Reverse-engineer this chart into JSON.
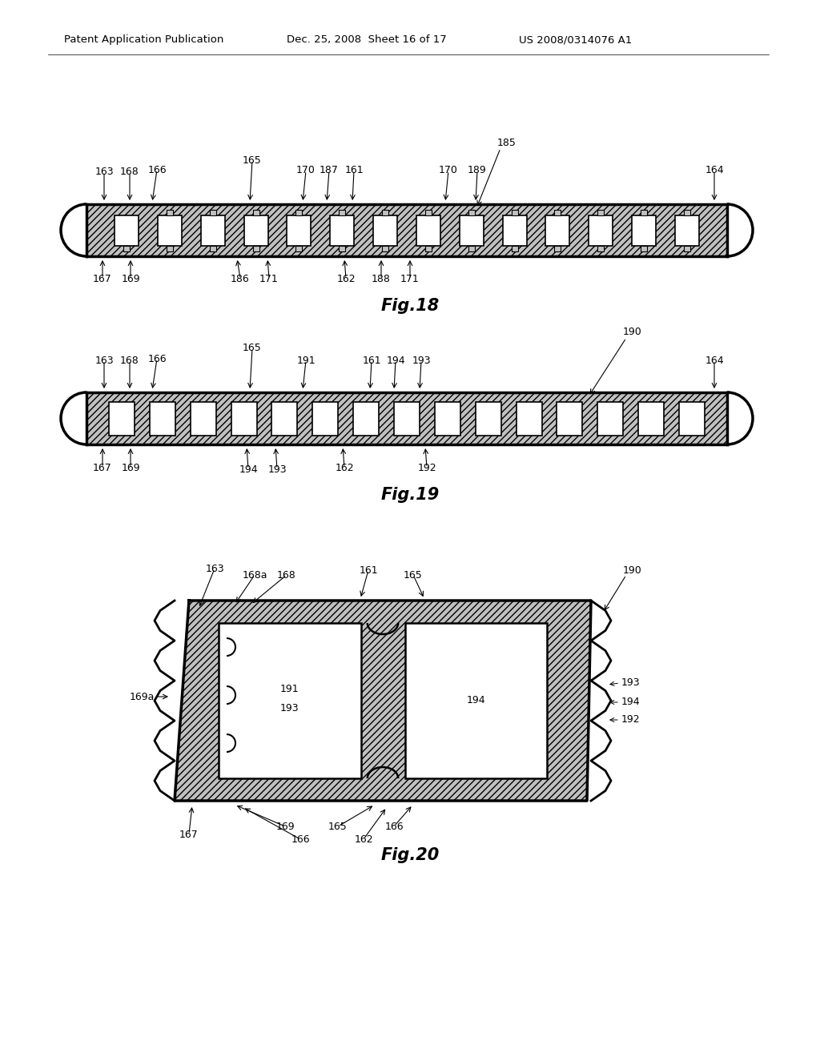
{
  "bg_color": "#ffffff",
  "header_left": "Patent Application Publication",
  "header_mid": "Dec. 25, 2008  Sheet 16 of 17",
  "header_right": "US 2008/0314076 A1",
  "fig18_title": "Fig.18",
  "fig19_title": "Fig.19",
  "fig20_title": "Fig.20",
  "hatch_color": "#c0c0c0",
  "line_color": "#000000"
}
